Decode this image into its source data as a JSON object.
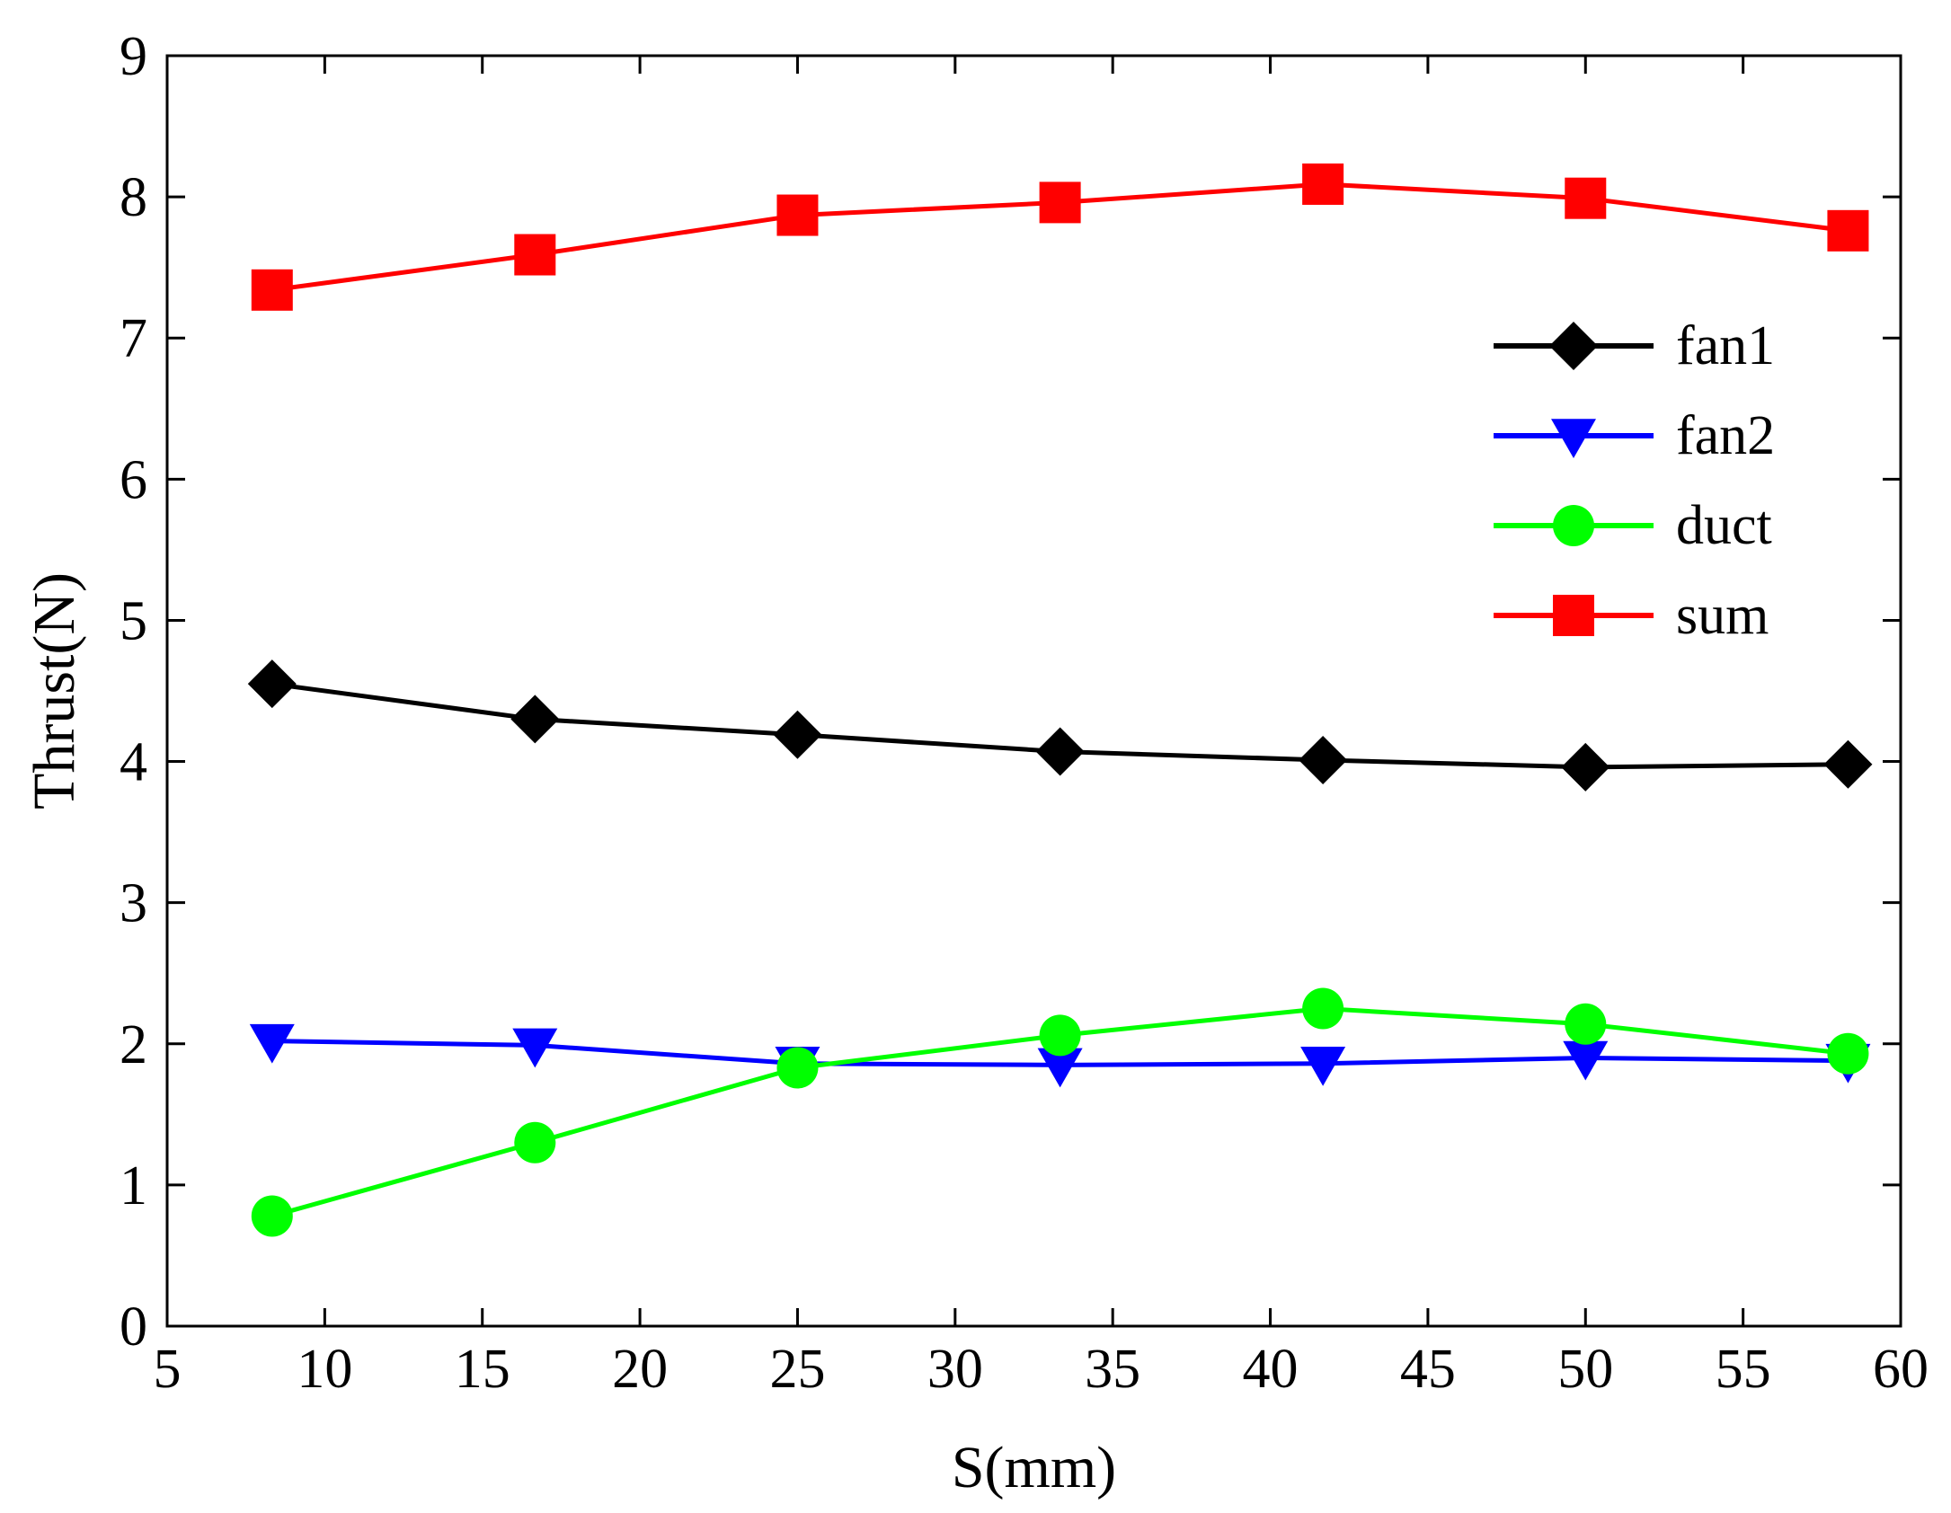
{
  "chart_data": {
    "type": "line",
    "title": "",
    "xlabel": "S(mm)",
    "ylabel": "Thrust(N)",
    "xlim": [
      5,
      60
    ],
    "ylim": [
      0,
      9
    ],
    "xticks": [
      5,
      10,
      15,
      20,
      25,
      30,
      35,
      40,
      45,
      50,
      55,
      60
    ],
    "yticks": [
      0,
      1,
      2,
      3,
      4,
      5,
      6,
      7,
      8,
      9
    ],
    "grid": false,
    "legend_position": "right",
    "x": [
      8.33,
      16.67,
      25,
      33.33,
      41.67,
      50,
      58.33
    ],
    "series": [
      {
        "name": "fan1",
        "color": "#000000",
        "marker": "diamond",
        "values": [
          4.55,
          4.3,
          4.19,
          4.07,
          4.01,
          3.96,
          3.98
        ]
      },
      {
        "name": "fan2",
        "color": "#0000ff",
        "marker": "triangle-down",
        "values": [
          2.02,
          1.99,
          1.86,
          1.85,
          1.86,
          1.9,
          1.88
        ]
      },
      {
        "name": "duct",
        "color": "#00ff00",
        "marker": "circle",
        "values": [
          0.78,
          1.3,
          1.83,
          2.06,
          2.25,
          2.14,
          1.93
        ]
      },
      {
        "name": "sum",
        "color": "#ff0000",
        "marker": "square",
        "values": [
          7.34,
          7.59,
          7.87,
          7.96,
          8.09,
          7.99,
          7.76
        ]
      }
    ]
  }
}
